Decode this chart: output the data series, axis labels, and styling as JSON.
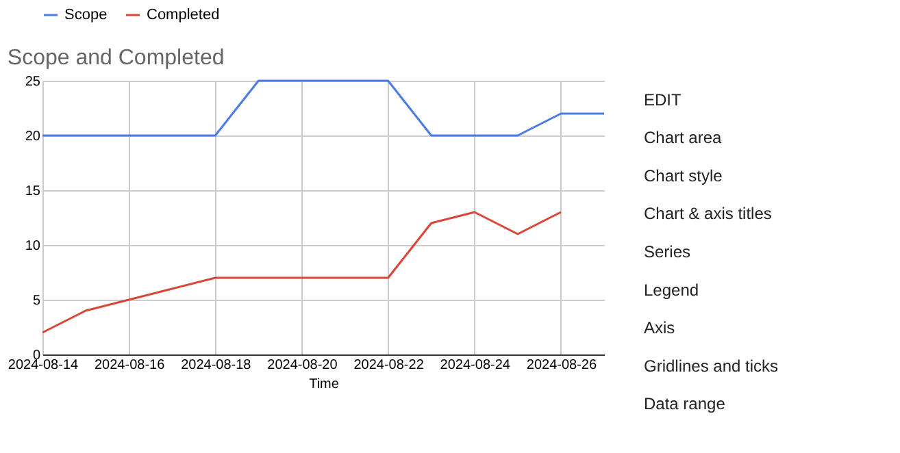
{
  "chart_data": {
    "type": "line",
    "title": "Scope and Completed",
    "xlabel": "Time",
    "x": [
      "2024-08-14",
      "2024-08-15",
      "2024-08-16",
      "2024-08-17",
      "2024-08-18",
      "2024-08-19",
      "2024-08-20",
      "2024-08-21",
      "2024-08-22",
      "2024-08-23",
      "2024-08-24",
      "2024-08-25",
      "2024-08-26",
      "2024-08-27"
    ],
    "series": [
      {
        "name": "Scope",
        "color": "#4a7bea",
        "values": [
          20,
          20,
          20,
          20,
          20,
          25,
          25,
          25,
          25,
          20,
          20,
          20,
          22,
          22
        ]
      },
      {
        "name": "Completed",
        "color": "#db4437",
        "values": [
          2,
          4,
          5,
          6,
          7,
          7,
          7,
          7,
          7,
          12,
          13,
          11,
          13,
          null
        ]
      }
    ],
    "xlim": [
      "2024-08-14",
      "2024-08-27"
    ],
    "xticks": [
      {
        "value": "2024-08-14",
        "label": "2024-08-14"
      },
      {
        "value": "2024-08-16",
        "label": "2024-08-16"
      },
      {
        "value": "2024-08-18",
        "label": "2024-08-18"
      },
      {
        "value": "2024-08-20",
        "label": "2024-08-20"
      },
      {
        "value": "2024-08-22",
        "label": "2024-08-22"
      },
      {
        "value": "2024-08-24",
        "label": "2024-08-24"
      },
      {
        "value": "2024-08-26",
        "label": "2024-08-26"
      }
    ],
    "ylim": [
      0,
      25
    ],
    "yticks": [
      0,
      5,
      10,
      15,
      20,
      25
    ],
    "grid": true,
    "legend": "top",
    "marker": "none",
    "line_style": "solid",
    "annotations": [
      "EDIT",
      "Chart area",
      "Chart style",
      "Chart & axis titles",
      "Series",
      "Legend",
      "Axis",
      "Gridlines and ticks",
      "Data range"
    ]
  }
}
